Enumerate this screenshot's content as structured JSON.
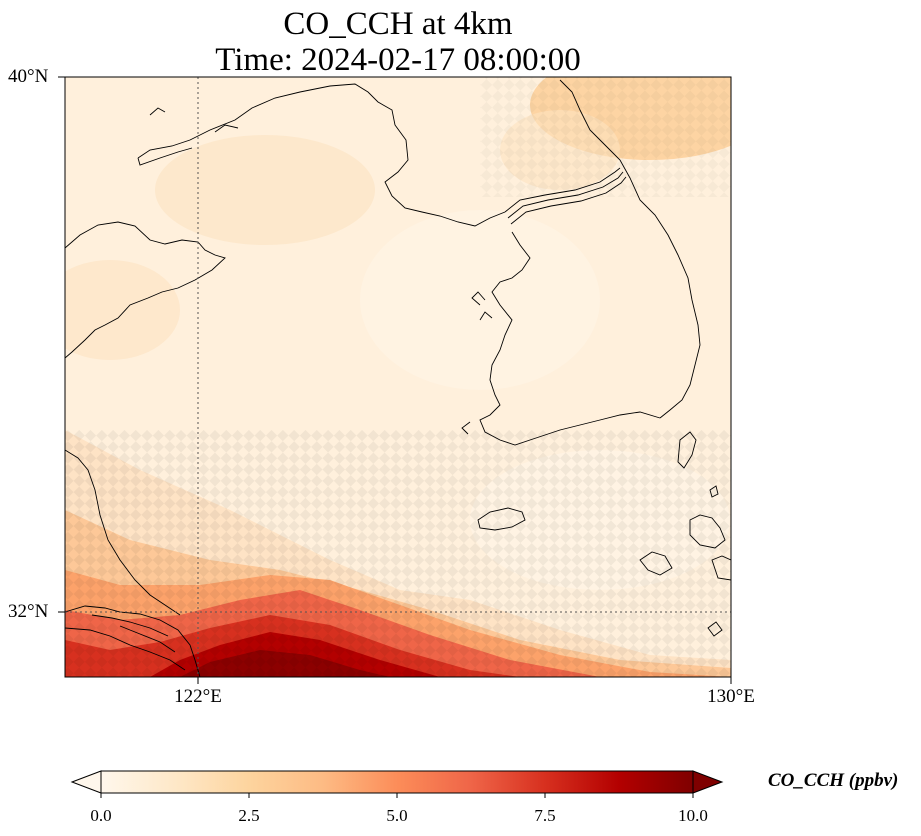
{
  "title": {
    "line1": "CO_CCH at 4km",
    "line2": "Time: 2024-02-17 08:00:00"
  },
  "axes": {
    "lat_labels": [
      "40°N",
      "32°N"
    ],
    "lon_labels": [
      "122°E",
      "130°E"
    ]
  },
  "colorbar": {
    "label": "CO_CCH (ppbv)",
    "ticks": [
      "0.0",
      "2.5",
      "5.0",
      "7.5",
      "10.0"
    ],
    "vmin": 0,
    "vmax": 10,
    "extend": "both",
    "colormap": "OrRd",
    "colors": [
      "#fff7ec",
      "#fee8c8",
      "#fdd49e",
      "#fdbb84",
      "#fc8d59",
      "#ef6548",
      "#d7301f",
      "#b30000",
      "#7f0000"
    ]
  },
  "map": {
    "lon_range": [
      120,
      130
    ],
    "lat_range": [
      31,
      40
    ],
    "gridlines": "dotted at 122°E and 32°N",
    "feature": "high CO_CCH concentration along the southern edge, background around 0.5–1.5 ppbv"
  }
}
